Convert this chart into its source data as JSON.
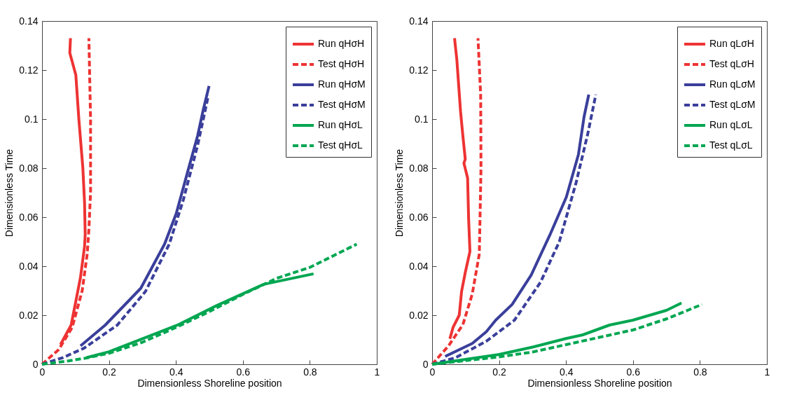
{
  "chart_data": [
    {
      "type": "line",
      "xlabel": "Dimensionless Shoreline position",
      "ylabel": "Dimensionless Time",
      "xlim": [
        0,
        1
      ],
      "ylim": [
        0,
        0.14
      ],
      "xticks": [
        0,
        0.2,
        0.4,
        0.6,
        0.8,
        1
      ],
      "yticks": [
        0,
        0.02,
        0.04,
        0.06,
        0.08,
        0.1,
        0.12,
        0.14
      ],
      "grid": false,
      "legend": "top right",
      "series": [
        {
          "name": "Run qHσH",
          "color": "#ee3333",
          "line_style": "solid",
          "x": [
            0.055,
            0.087,
            0.1,
            0.115,
            0.127,
            0.129,
            0.127,
            0.122,
            0.11,
            0.101,
            0.083,
            0.085
          ],
          "values": [
            0.008,
            0.016,
            0.025,
            0.0355,
            0.048,
            0.053,
            0.066,
            0.08,
            0.1,
            0.118,
            0.127,
            0.133
          ]
        },
        {
          "name": "Test qHσH",
          "color": "#ee3333",
          "line_style": "dashed",
          "x": [
            0,
            0.05,
            0.09,
            0.12,
            0.135,
            0.14,
            0.145,
            0.145,
            0.14
          ],
          "values": [
            0,
            0.006,
            0.015,
            0.03,
            0.045,
            0.055,
            0.07,
            0.1,
            0.133
          ]
        },
        {
          "name": "Run qHσM",
          "color": "#3a3f9b",
          "line_style": "solid",
          "x": [
            0.115,
            0.189,
            0.295,
            0.366,
            0.401,
            0.436,
            0.465,
            0.482,
            0.499
          ],
          "values": [
            0.0075,
            0.016,
            0.031,
            0.049,
            0.0615,
            0.079,
            0.0933,
            0.104,
            0.1135
          ]
        },
        {
          "name": "Test qHσM",
          "color": "#3a3f9b",
          "line_style": "dashed",
          "x": [
            0,
            0.062,
            0.126,
            0.225,
            0.309,
            0.38,
            0.422,
            0.465,
            0.497
          ],
          "values": [
            0,
            0.0027,
            0.0066,
            0.016,
            0.0297,
            0.049,
            0.067,
            0.0894,
            0.1097
          ]
        },
        {
          "name": "Run qHσL",
          "color": "#00a651",
          "line_style": "solid",
          "x": [
            0.133,
            0.2,
            0.309,
            0.408,
            0.521,
            0.662,
            0.811
          ],
          "values": [
            0.0027,
            0.0051,
            0.0109,
            0.0162,
            0.0239,
            0.0326,
            0.0369
          ]
        },
        {
          "name": "Test qHσL",
          "color": "#00a651",
          "line_style": "dashed",
          "x": [
            0,
            0.07,
            0.13,
            0.2,
            0.3,
            0.4,
            0.5,
            0.6,
            0.7,
            0.8,
            0.94
          ],
          "values": [
            0,
            0.0012,
            0.0025,
            0.0045,
            0.009,
            0.015,
            0.0215,
            0.0285,
            0.035,
            0.0395,
            0.049
          ]
        }
      ]
    },
    {
      "type": "line",
      "xlabel": "Dimensionless Shoreline position",
      "ylabel": "Dimensionless Time",
      "xlim": [
        0,
        1
      ],
      "ylim": [
        0,
        0.14
      ],
      "xticks": [
        0,
        0.2,
        0.4,
        0.6,
        0.8,
        1
      ],
      "yticks": [
        0,
        0.02,
        0.04,
        0.06,
        0.08,
        0.1,
        0.12,
        0.14
      ],
      "grid": false,
      "legend": "top right",
      "series": [
        {
          "name": "Run qLσH",
          "color": "#ee3333",
          "line_style": "solid",
          "x": [
            0.053,
            0.063,
            0.081,
            0.088,
            0.099,
            0.113,
            0.109,
            0.106,
            0.095,
            0.099,
            0.092,
            0.085,
            0.074,
            0.067
          ],
          "values": [
            0.0104,
            0.0152,
            0.02,
            0.0297,
            0.0374,
            0.046,
            0.0596,
            0.076,
            0.082,
            0.0837,
            0.093,
            0.103,
            0.124,
            0.133
          ]
        },
        {
          "name": "Test qLσH",
          "color": "#ee3333",
          "line_style": "dashed",
          "x": [
            0,
            0.049,
            0.092,
            0.12,
            0.141,
            0.146,
            0.145,
            0.137
          ],
          "values": [
            0,
            0.0075,
            0.0162,
            0.0287,
            0.045,
            0.08,
            0.11,
            0.133
          ]
        },
        {
          "name": "Run qLσM",
          "color": "#3a3f9b",
          "line_style": "solid",
          "x": [
            0.039,
            0.12,
            0.162,
            0.19,
            0.239,
            0.296,
            0.352,
            0.401,
            0.437,
            0.454,
            0.468
          ],
          "values": [
            0.0032,
            0.0085,
            0.0133,
            0.018,
            0.0244,
            0.0364,
            0.0528,
            0.0682,
            0.0855,
            0.101,
            0.11
          ]
        },
        {
          "name": "Test qLσM",
          "color": "#3a3f9b",
          "line_style": "dashed",
          "x": [
            0,
            0.07,
            0.162,
            0.246,
            0.324,
            0.38,
            0.43,
            0.465,
            0.489
          ],
          "values": [
            0,
            0.0027,
            0.0094,
            0.018,
            0.0335,
            0.05,
            0.074,
            0.094,
            0.11
          ]
        },
        {
          "name": "Run qLσL",
          "color": "#00a651",
          "line_style": "solid",
          "x": [
            0,
            0.1,
            0.2,
            0.3,
            0.4,
            0.45,
            0.53,
            0.6,
            0.7,
            0.745
          ],
          "values": [
            0,
            0.002,
            0.004,
            0.007,
            0.0105,
            0.012,
            0.016,
            0.018,
            0.022,
            0.025
          ]
        },
        {
          "name": "Test qLσL",
          "color": "#00a651",
          "line_style": "dashed",
          "x": [
            0,
            0.1,
            0.2,
            0.3,
            0.4,
            0.5,
            0.6,
            0.7,
            0.806
          ],
          "values": [
            0,
            0.0015,
            0.003,
            0.005,
            0.008,
            0.011,
            0.014,
            0.0185,
            0.0244
          ]
        }
      ]
    }
  ]
}
